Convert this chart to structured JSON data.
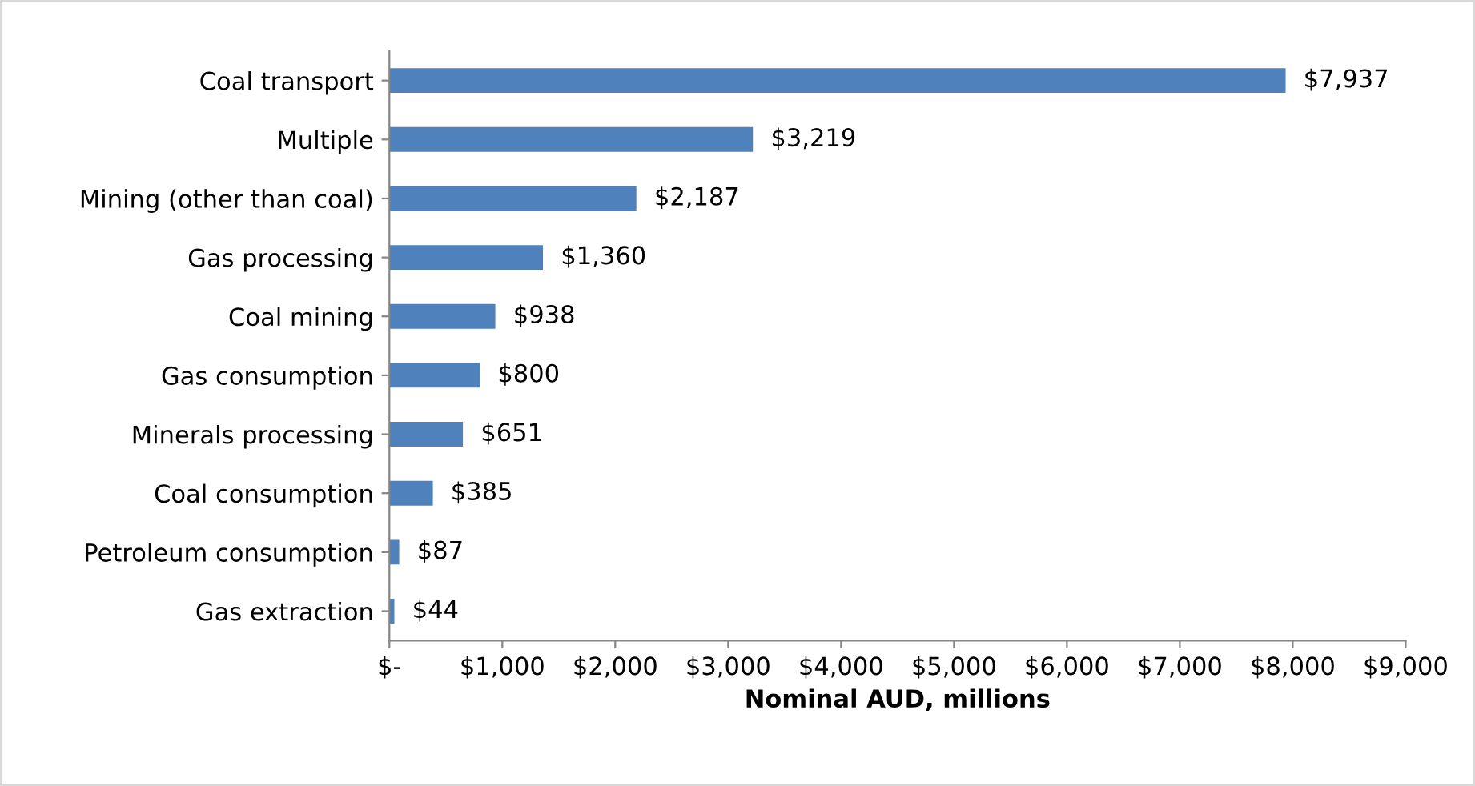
{
  "chart_data": {
    "type": "bar",
    "orientation": "horizontal",
    "xlabel": "Nominal AUD, millions",
    "categories": [
      "Coal transport",
      "Multiple",
      "Mining (other than coal)",
      "Gas processing",
      "Coal mining",
      "Gas consumption",
      "Minerals processing",
      "Coal consumption",
      "Petroleum consumption",
      "Gas extraction"
    ],
    "values": [
      7937,
      3219,
      2187,
      1360,
      938,
      800,
      651,
      385,
      87,
      44
    ],
    "value_labels": [
      "$7,937",
      "$3,219",
      "$2,187",
      "$1,360",
      "$938",
      "$800",
      "$651",
      "$385",
      "$87",
      "$44"
    ],
    "color": "#4f81bd",
    "xlim": [
      0,
      9000
    ],
    "xticks": [
      {
        "value": 0,
        "label": "$-"
      },
      {
        "value": 1000,
        "label": "$1,000"
      },
      {
        "value": 2000,
        "label": "$2,000"
      },
      {
        "value": 3000,
        "label": "$3,000"
      },
      {
        "value": 4000,
        "label": "$4,000"
      },
      {
        "value": 5000,
        "label": "$5,000"
      },
      {
        "value": 6000,
        "label": "$6,000"
      },
      {
        "value": 7000,
        "label": "$7,000"
      },
      {
        "value": 8000,
        "label": "$8,000"
      },
      {
        "value": 9000,
        "label": "$9,000"
      }
    ],
    "grid": false,
    "legend": false
  }
}
